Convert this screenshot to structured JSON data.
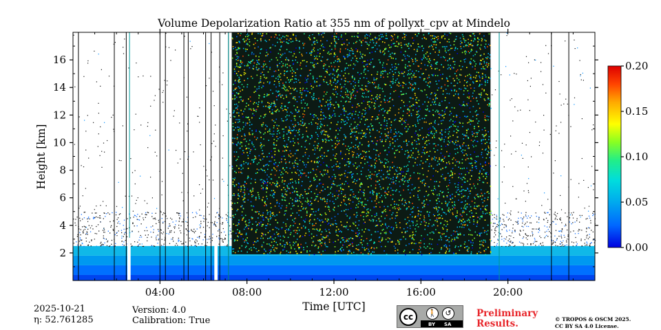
{
  "chart_data": {
    "type": "heatmap",
    "title": "Volume Depolarization Ratio at 355 nm of pollyxt_cpv at Mindelo",
    "xlabel": "Time [UTC]",
    "ylabel": "Height [km]",
    "x_range_hours": [
      0,
      24
    ],
    "x_ticks": [
      {
        "value": 4,
        "label": "04:00"
      },
      {
        "value": 8,
        "label": "08:00"
      },
      {
        "value": 12,
        "label": "12:00"
      },
      {
        "value": 16,
        "label": "16:00"
      },
      {
        "value": 20,
        "label": "20:00"
      }
    ],
    "y_range_km": [
      0,
      18
    ],
    "y_ticks": [
      {
        "value": 2,
        "label": "2"
      },
      {
        "value": 4,
        "label": "4"
      },
      {
        "value": 6,
        "label": "6"
      },
      {
        "value": 8,
        "label": "8"
      },
      {
        "value": 10,
        "label": "10"
      },
      {
        "value": 12,
        "label": "12"
      },
      {
        "value": 14,
        "label": "14"
      },
      {
        "value": 16,
        "label": "16"
      }
    ],
    "colorbar": {
      "range": [
        0.0,
        0.2
      ],
      "ticks": [
        {
          "value": 0.0,
          "label": "0.00"
        },
        {
          "value": 0.05,
          "label": "0.05"
        },
        {
          "value": 0.1,
          "label": "0.10"
        },
        {
          "value": 0.15,
          "label": "0.15"
        },
        {
          "value": 0.2,
          "label": "0.20"
        }
      ],
      "colors": [
        "#0000e0",
        "#0066ff",
        "#00aaee",
        "#00dddd",
        "#22ee88",
        "#88ff22",
        "#ffff00",
        "#ffaa00",
        "#ff4400",
        "#dd0000"
      ]
    },
    "noisy_segment_hours": [
      7.3,
      19.2
    ],
    "gap_intervals_hours": [
      [
        2.5,
        2.65
      ],
      [
        6.5,
        6.65
      ]
    ],
    "vertical_lines_hours": [
      0.25,
      1.9,
      2.45,
      4.0,
      4.25,
      5.1,
      5.3,
      6.1,
      6.35,
      6.75,
      7.15,
      19.6,
      22.0,
      22.8,
      24.0
    ],
    "cyan_lines_hours": [
      2.6,
      7.15,
      19.6
    ],
    "boundary_layer_top_km": 2.5,
    "background_color": "#ffffff"
  },
  "meta": {
    "date": "2025-10-21",
    "eta_label": "η: 52.761285",
    "version": "Version: 4.0",
    "calibration": "Calibration: True"
  },
  "license": {
    "cc": "cc",
    "by": "BY",
    "sa": "SA",
    "preliminary_1": "Preliminary",
    "preliminary_2": "Results.",
    "copyright_1": "© TROPOS & OSCM 2025.",
    "copyright_2": "CC BY SA 4.0 License."
  }
}
